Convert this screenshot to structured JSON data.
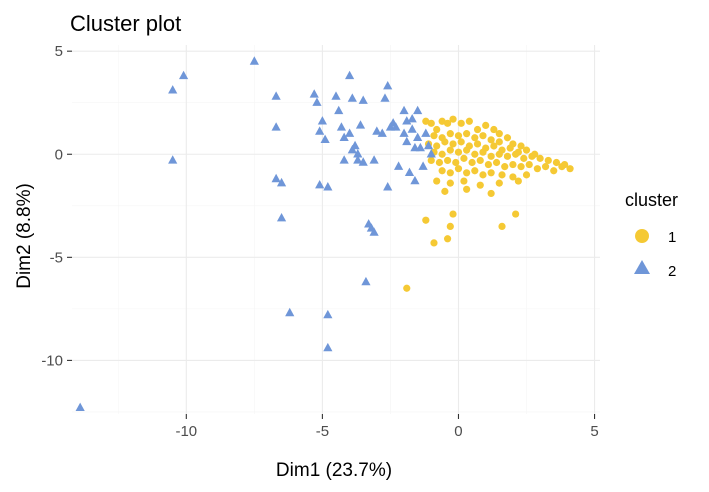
{
  "chart_data": {
    "type": "scatter",
    "title": "Cluster plot",
    "xlabel": "Dim1 (23.7%)",
    "ylabel": "Dim2 (8.8%)",
    "xlim": [
      -14.2,
      5.2
    ],
    "ylim": [
      -12.6,
      5.3
    ],
    "x_ticks": [
      -10,
      -5,
      0,
      5
    ],
    "y_ticks": [
      5,
      0,
      -5,
      -10
    ],
    "x_tick_labels": [
      "-10",
      "-5",
      "0",
      "5"
    ],
    "y_tick_labels": [
      "5",
      "0",
      "-5",
      "-10"
    ],
    "grid": true,
    "legend": {
      "title": "cluster",
      "placement": "right"
    },
    "series": [
      {
        "name": "1",
        "color": "#F5C934",
        "marker": "circle",
        "points": [
          [
            -1.2,
            1.6
          ],
          [
            -1.0,
            1.5
          ],
          [
            -0.8,
            1.2
          ],
          [
            -0.6,
            1.6
          ],
          [
            -0.4,
            1.5
          ],
          [
            -0.2,
            1.7
          ],
          [
            0.1,
            1.5
          ],
          [
            0.4,
            1.6
          ],
          [
            0.7,
            1.2
          ],
          [
            1.0,
            1.4
          ],
          [
            1.3,
            1.2
          ],
          [
            1.5,
            1.0
          ],
          [
            -0.9,
            0.9
          ],
          [
            -0.6,
            0.8
          ],
          [
            -0.3,
            1.0
          ],
          [
            0.0,
            0.9
          ],
          [
            0.3,
            1.0
          ],
          [
            0.6,
            0.8
          ],
          [
            0.9,
            0.9
          ],
          [
            1.2,
            0.7
          ],
          [
            1.5,
            0.6
          ],
          [
            1.8,
            0.8
          ],
          [
            2.0,
            0.5
          ],
          [
            2.3,
            0.4
          ],
          [
            -1.1,
            0.5
          ],
          [
            -0.8,
            0.4
          ],
          [
            -0.5,
            0.6
          ],
          [
            -0.2,
            0.5
          ],
          [
            0.1,
            0.6
          ],
          [
            0.4,
            0.4
          ],
          [
            0.7,
            0.5
          ],
          [
            1.0,
            0.3
          ],
          [
            1.3,
            0.4
          ],
          [
            1.6,
            0.2
          ],
          [
            1.9,
            0.3
          ],
          [
            2.2,
            0.1
          ],
          [
            2.5,
            0.2
          ],
          [
            2.8,
            0.0
          ],
          [
            -0.9,
            0.1
          ],
          [
            -0.6,
            0.0
          ],
          [
            -0.3,
            0.2
          ],
          [
            0.0,
            0.1
          ],
          [
            0.3,
            0.2
          ],
          [
            0.6,
            0.0
          ],
          [
            0.9,
            0.1
          ],
          [
            1.2,
            -0.1
          ],
          [
            1.5,
            0.0
          ],
          [
            1.8,
            -0.1
          ],
          [
            2.1,
            0.0
          ],
          [
            2.4,
            -0.2
          ],
          [
            2.7,
            -0.1
          ],
          [
            3.0,
            -0.2
          ],
          [
            3.3,
            -0.3
          ],
          [
            3.6,
            -0.4
          ],
          [
            3.9,
            -0.5
          ],
          [
            4.1,
            -0.7
          ],
          [
            -1.0,
            -0.3
          ],
          [
            -0.7,
            -0.4
          ],
          [
            -0.4,
            -0.3
          ],
          [
            -0.1,
            -0.4
          ],
          [
            0.2,
            -0.2
          ],
          [
            0.5,
            -0.4
          ],
          [
            0.8,
            -0.3
          ],
          [
            1.1,
            -0.5
          ],
          [
            1.4,
            -0.4
          ],
          [
            1.7,
            -0.6
          ],
          [
            2.0,
            -0.5
          ],
          [
            2.3,
            -0.6
          ],
          [
            2.6,
            -0.5
          ],
          [
            2.9,
            -0.7
          ],
          [
            3.2,
            -0.6
          ],
          [
            3.5,
            -0.8
          ],
          [
            3.8,
            -0.6
          ],
          [
            -0.6,
            -0.8
          ],
          [
            -0.3,
            -0.9
          ],
          [
            0.0,
            -0.7
          ],
          [
            0.3,
            -0.9
          ],
          [
            0.6,
            -0.8
          ],
          [
            0.9,
            -1.0
          ],
          [
            1.2,
            -0.9
          ],
          [
            1.6,
            -1.0
          ],
          [
            2.0,
            -1.1
          ],
          [
            2.5,
            -1.0
          ],
          [
            -0.8,
            -1.3
          ],
          [
            -0.3,
            -1.4
          ],
          [
            0.2,
            -1.3
          ],
          [
            0.8,
            -1.5
          ],
          [
            1.5,
            -1.4
          ],
          [
            2.2,
            -1.3
          ],
          [
            -0.5,
            -1.8
          ],
          [
            0.3,
            -1.7
          ],
          [
            1.2,
            -1.9
          ],
          [
            -1.2,
            -3.2
          ],
          [
            -0.2,
            -2.9
          ],
          [
            2.1,
            -2.9
          ],
          [
            1.6,
            -3.5
          ],
          [
            -0.3,
            -3.5
          ],
          [
            -0.4,
            -4.1
          ],
          [
            -0.9,
            -4.3
          ],
          [
            -1.9,
            -6.5
          ]
        ]
      },
      {
        "name": "2",
        "color": "#6F96D8",
        "marker": "triangle",
        "points": [
          [
            -13.9,
            -12.3
          ],
          [
            -10.5,
            3.1
          ],
          [
            -10.1,
            3.8
          ],
          [
            -10.5,
            -0.3
          ],
          [
            -7.5,
            4.5
          ],
          [
            -6.7,
            2.8
          ],
          [
            -6.7,
            1.3
          ],
          [
            -6.7,
            -1.2
          ],
          [
            -6.5,
            -1.4
          ],
          [
            -6.5,
            -3.1
          ],
          [
            -6.2,
            -7.7
          ],
          [
            -5.3,
            2.9
          ],
          [
            -5.2,
            2.5
          ],
          [
            -5.1,
            1.1
          ],
          [
            -5.1,
            -1.5
          ],
          [
            -5.0,
            1.6
          ],
          [
            -4.9,
            0.7
          ],
          [
            -4.8,
            -1.6
          ],
          [
            -4.8,
            -7.8
          ],
          [
            -4.8,
            -9.4
          ],
          [
            -4.5,
            2.8
          ],
          [
            -4.4,
            2.1
          ],
          [
            -4.3,
            1.3
          ],
          [
            -4.2,
            0.8
          ],
          [
            -4.2,
            -0.3
          ],
          [
            -4.0,
            1.0
          ],
          [
            -4.0,
            3.8
          ],
          [
            -3.9,
            2.7
          ],
          [
            -3.9,
            0.2
          ],
          [
            -3.8,
            0.4
          ],
          [
            -3.7,
            0.0
          ],
          [
            -3.7,
            -0.3
          ],
          [
            -3.6,
            1.4
          ],
          [
            -3.5,
            2.6
          ],
          [
            -3.5,
            -0.4
          ],
          [
            -3.4,
            -6.2
          ],
          [
            -3.3,
            -3.4
          ],
          [
            -3.2,
            -3.6
          ],
          [
            -3.1,
            -3.8
          ],
          [
            -3.1,
            -0.3
          ],
          [
            -3.0,
            1.1
          ],
          [
            -2.8,
            1.0
          ],
          [
            -2.7,
            2.7
          ],
          [
            -2.6,
            3.3
          ],
          [
            -2.6,
            -1.6
          ],
          [
            -2.5,
            1.3
          ],
          [
            -2.4,
            1.5
          ],
          [
            -2.3,
            1.3
          ],
          [
            -2.2,
            -0.6
          ],
          [
            -2.0,
            2.1
          ],
          [
            -2.0,
            1.0
          ],
          [
            -1.9,
            1.6
          ],
          [
            -1.9,
            0.6
          ],
          [
            -1.8,
            -0.9
          ],
          [
            -1.7,
            1.7
          ],
          [
            -1.7,
            1.2
          ],
          [
            -1.6,
            0.3
          ],
          [
            -1.6,
            -1.3
          ],
          [
            -1.5,
            2.1
          ],
          [
            -1.5,
            0.8
          ],
          [
            -1.4,
            0.3
          ],
          [
            -1.3,
            -0.6
          ],
          [
            -1.2,
            1.0
          ],
          [
            -1.1,
            0.4
          ],
          [
            -1.0,
            0.0
          ]
        ]
      }
    ]
  }
}
